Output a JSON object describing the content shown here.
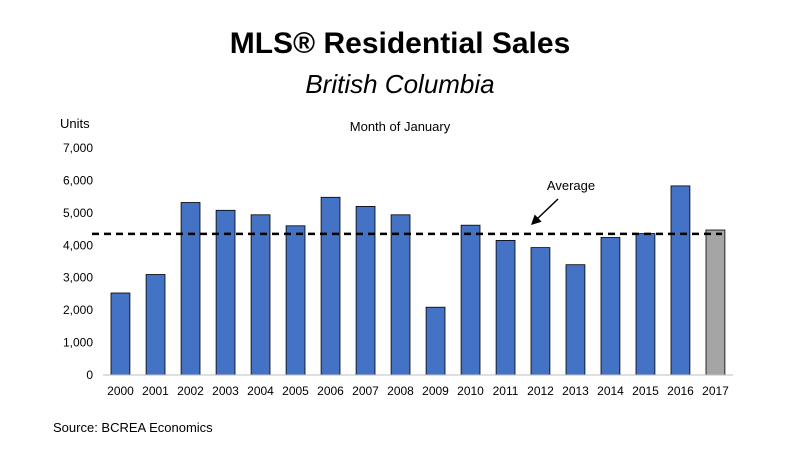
{
  "chart_data": {
    "type": "bar",
    "title": "MLS® Residential Sales",
    "subtitle": "British Columbia",
    "chart_label": "Month of January",
    "ylabel": "Units",
    "xlabel": "",
    "ylim": [
      0,
      7000
    ],
    "yticks": [
      0,
      1000,
      2000,
      3000,
      4000,
      5000,
      6000,
      7000
    ],
    "ytick_labels": [
      "0",
      "1,000",
      "2,000",
      "3,000",
      "4,000",
      "5,000",
      "6,000",
      "7,000"
    ],
    "categories": [
      "2000",
      "2001",
      "2002",
      "2003",
      "2004",
      "2005",
      "2006",
      "2007",
      "2008",
      "2009",
      "2010",
      "2011",
      "2012",
      "2013",
      "2014",
      "2015",
      "2016",
      "2017"
    ],
    "values": [
      2530,
      3100,
      5320,
      5080,
      4940,
      4600,
      5480,
      5200,
      4940,
      2090,
      4620,
      4150,
      3930,
      3400,
      4240,
      4360,
      5830,
      4470
    ],
    "bar_colors": [
      "#4472C4",
      "#4472C4",
      "#4472C4",
      "#4472C4",
      "#4472C4",
      "#4472C4",
      "#4472C4",
      "#4472C4",
      "#4472C4",
      "#4472C4",
      "#4472C4",
      "#4472C4",
      "#4472C4",
      "#4472C4",
      "#4472C4",
      "#4472C4",
      "#4472C4",
      "#A5A5A5"
    ],
    "average": 4350,
    "average_label": "Average",
    "source": "Source: BCREA Economics",
    "grid": false
  }
}
